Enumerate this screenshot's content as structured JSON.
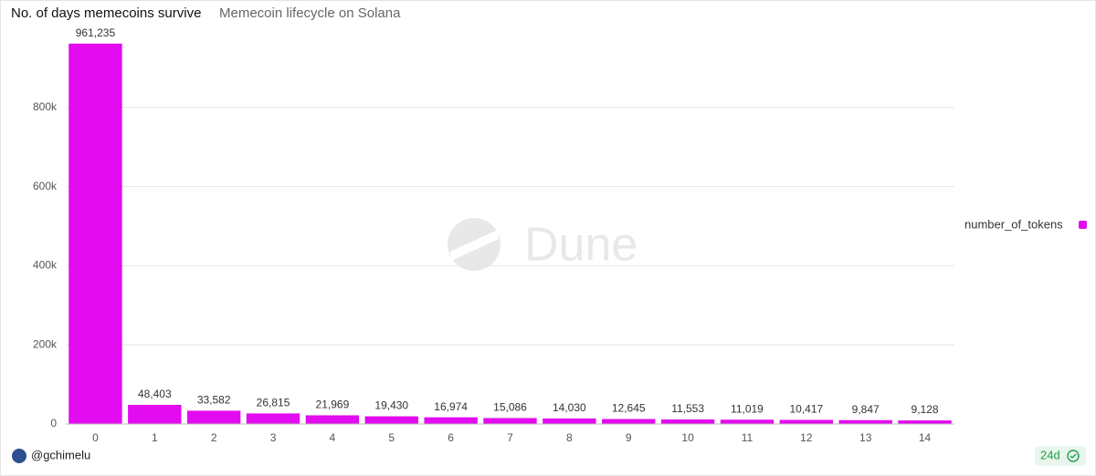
{
  "chart_data": {
    "type": "bar",
    "title": "No. of days memecoins survive",
    "subtitle": "Memecoin lifecycle on Solana",
    "watermark": "Dune",
    "categories": [
      "0",
      "1",
      "2",
      "3",
      "4",
      "5",
      "6",
      "7",
      "8",
      "9",
      "10",
      "11",
      "12",
      "13",
      "14"
    ],
    "series": [
      {
        "name": "number_of_tokens",
        "color": "#e30bef",
        "values": [
          961235,
          48403,
          33582,
          26815,
          21969,
          19430,
          16974,
          15086,
          14030,
          12645,
          11553,
          11019,
          10417,
          9847,
          9128
        ],
        "value_labels": [
          "961,235",
          "48,403",
          "33,582",
          "26,815",
          "21,969",
          "19,430",
          "16,974",
          "15,086",
          "14,030",
          "12,645",
          "11,553",
          "11,019",
          "10,417",
          "9,847",
          "9,128"
        ]
      }
    ],
    "ylim": [
      0,
      1000000
    ],
    "yticks": [
      0,
      {
        "value": 200000,
        "label": "200k"
      },
      {
        "value": 400000,
        "label": "400k"
      },
      {
        "value": 600000,
        "label": "600k"
      },
      {
        "value": 800000,
        "label": "800k"
      }
    ],
    "grid": true,
    "legend": "right"
  },
  "footer": {
    "author": "@gchimelu",
    "age": "24d"
  }
}
